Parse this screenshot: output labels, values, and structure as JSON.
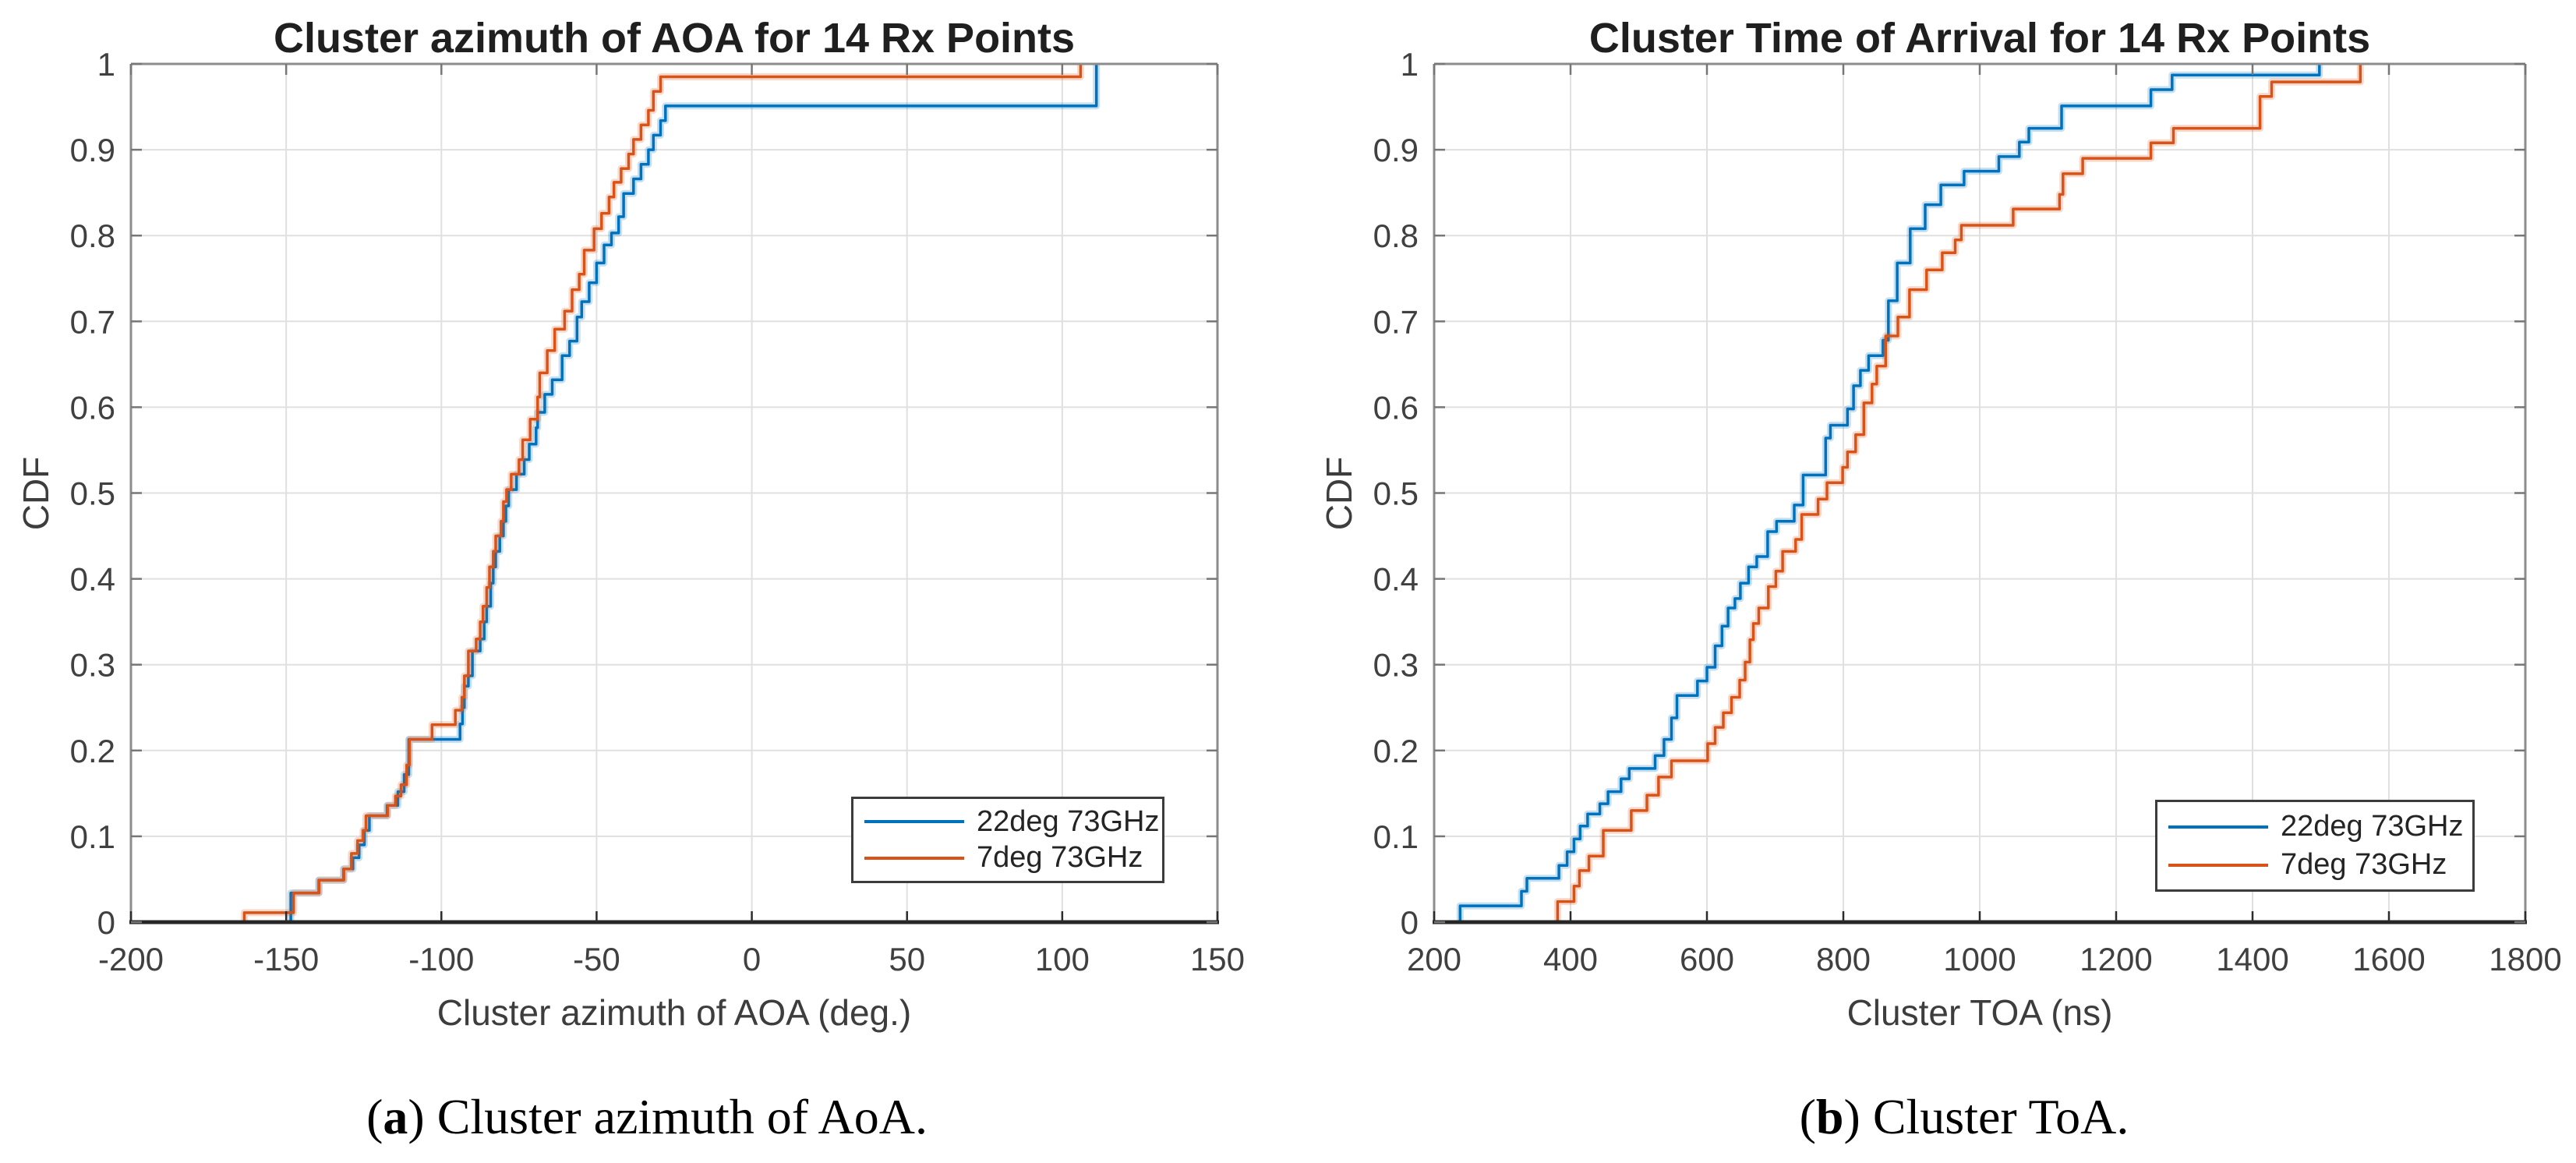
{
  "figure": {
    "background": "#ffffff",
    "accent_colors": {
      "series_blue": "#0072BD",
      "series_orange": "#D95319"
    },
    "captions": [
      {
        "open": "(",
        "letter": "a",
        "rest": ") Cluster azimuth of AoA."
      },
      {
        "open": "(",
        "letter": "b",
        "rest": ") Cluster ToA."
      }
    ]
  },
  "chart_data": [
    {
      "type": "line",
      "subtype": "empirical-cdf-stairs",
      "title": "Cluster azimuth of AOA for 14 Rx Points",
      "xlabel": "Cluster azimuth of AOA (deg.)",
      "ylabel": "CDF",
      "xlim": [
        -200,
        150
      ],
      "ylim": [
        0,
        1
      ],
      "xticks": [
        -200,
        -150,
        -100,
        -50,
        0,
        50,
        100,
        150
      ],
      "yticks": [
        0,
        0.1,
        0.2,
        0.3,
        0.4,
        0.5,
        0.6,
        0.7,
        0.8,
        0.9,
        1
      ],
      "grid": true,
      "legend_position": "southeast",
      "series": [
        {
          "name": "22deg 73GHz",
          "color": "#0072BD",
          "steps": [
            [
              -148.5,
              0.034
            ],
            [
              -139.5,
              0.049
            ],
            [
              -131.5,
              0.062
            ],
            [
              -128.5,
              0.075
            ],
            [
              -126.5,
              0.09
            ],
            [
              -124.8,
              0.107
            ],
            [
              -123.2,
              0.124
            ],
            [
              -117.5,
              0.136
            ],
            [
              -114,
              0.152
            ],
            [
              -112,
              0.172
            ],
            [
              -110.5,
              0.213
            ],
            [
              -94,
              0.231
            ],
            [
              -93.2,
              0.25
            ],
            [
              -92.6,
              0.275
            ],
            [
              -91.3,
              0.287
            ],
            [
              -90,
              0.316
            ],
            [
              -87.5,
              0.33
            ],
            [
              -86.2,
              0.35
            ],
            [
              -85.4,
              0.368
            ],
            [
              -84.1,
              0.395
            ],
            [
              -83.3,
              0.414
            ],
            [
              -82.5,
              0.432
            ],
            [
              -81.2,
              0.45
            ],
            [
              -80,
              0.467
            ],
            [
              -79.2,
              0.485
            ],
            [
              -78.3,
              0.504
            ],
            [
              -75.8,
              0.522
            ],
            [
              -73.3,
              0.539
            ],
            [
              -71.7,
              0.557
            ],
            [
              -69.5,
              0.576
            ],
            [
              -69,
              0.594
            ],
            [
              -66.7,
              0.615
            ],
            [
              -64.3,
              0.632
            ],
            [
              -61.1,
              0.66
            ],
            [
              -58.7,
              0.677
            ],
            [
              -56.3,
              0.705
            ],
            [
              -54.8,
              0.723
            ],
            [
              -52.4,
              0.745
            ],
            [
              -50,
              0.768
            ],
            [
              -47.6,
              0.789
            ],
            [
              -45.2,
              0.803
            ],
            [
              -42.9,
              0.822
            ],
            [
              -41.3,
              0.849
            ],
            [
              -38.1,
              0.866
            ],
            [
              -35.7,
              0.883
            ],
            [
              -33.3,
              0.9
            ],
            [
              -31.7,
              0.917
            ],
            [
              -29.4,
              0.934
            ],
            [
              -27.8,
              0.951
            ],
            [
              111,
              1.0
            ]
          ]
        },
        {
          "name": "7deg 73GHz",
          "color": "#D95319",
          "steps": [
            [
              -163.5,
              0.011
            ],
            [
              -147.6,
              0.034
            ],
            [
              -139.4,
              0.049
            ],
            [
              -131.4,
              0.062
            ],
            [
              -129,
              0.08
            ],
            [
              -127,
              0.095
            ],
            [
              -125.2,
              0.107
            ],
            [
              -124.3,
              0.124
            ],
            [
              -117.3,
              0.136
            ],
            [
              -114.8,
              0.147
            ],
            [
              -113,
              0.16
            ],
            [
              -111.2,
              0.183
            ],
            [
              -110.3,
              0.213
            ],
            [
              -103,
              0.23
            ],
            [
              -95.5,
              0.247
            ],
            [
              -93.4,
              0.262
            ],
            [
              -92.6,
              0.287
            ],
            [
              -91.3,
              0.316
            ],
            [
              -88.8,
              0.33
            ],
            [
              -87.5,
              0.35
            ],
            [
              -86.6,
              0.368
            ],
            [
              -85.4,
              0.39
            ],
            [
              -84.5,
              0.414
            ],
            [
              -83.3,
              0.432
            ],
            [
              -82.5,
              0.45
            ],
            [
              -80.8,
              0.467
            ],
            [
              -80,
              0.49
            ],
            [
              -79,
              0.504
            ],
            [
              -77.5,
              0.522
            ],
            [
              -75,
              0.539
            ],
            [
              -73.8,
              0.562
            ],
            [
              -71.4,
              0.586
            ],
            [
              -69,
              0.612
            ],
            [
              -68.3,
              0.64
            ],
            [
              -65.9,
              0.666
            ],
            [
              -63.5,
              0.691
            ],
            [
              -60.3,
              0.712
            ],
            [
              -57.9,
              0.737
            ],
            [
              -55.6,
              0.755
            ],
            [
              -54,
              0.783
            ],
            [
              -50.8,
              0.808
            ],
            [
              -48.4,
              0.826
            ],
            [
              -46,
              0.845
            ],
            [
              -44.4,
              0.862
            ],
            [
              -42.1,
              0.878
            ],
            [
              -39.7,
              0.895
            ],
            [
              -38.1,
              0.912
            ],
            [
              -35.7,
              0.929
            ],
            [
              -33.3,
              0.946
            ],
            [
              -31.7,
              0.968
            ],
            [
              -29.4,
              0.985
            ],
            [
              105.9,
              1.0
            ]
          ]
        }
      ]
    },
    {
      "type": "line",
      "subtype": "empirical-cdf-stairs",
      "title": "Cluster Time of Arrival for 14 Rx Points",
      "xlabel": "Cluster TOA (ns)",
      "ylabel": "CDF",
      "xlim": [
        200,
        1800
      ],
      "ylim": [
        0,
        1
      ],
      "xticks": [
        200,
        400,
        600,
        800,
        1000,
        1200,
        1400,
        1600,
        1800
      ],
      "yticks": [
        0,
        0.1,
        0.2,
        0.3,
        0.4,
        0.5,
        0.6,
        0.7,
        0.8,
        0.9,
        1
      ],
      "grid": true,
      "legend_position": "southeast",
      "series": [
        {
          "name": "22deg 73GHz",
          "color": "#0072BD",
          "steps": [
            [
              238,
              0.019
            ],
            [
              328,
              0.036
            ],
            [
              336,
              0.051
            ],
            [
              383,
              0.066
            ],
            [
              395,
              0.082
            ],
            [
              405,
              0.097
            ],
            [
              414,
              0.112
            ],
            [
              425,
              0.126
            ],
            [
              443,
              0.138
            ],
            [
              455,
              0.152
            ],
            [
              474,
              0.167
            ],
            [
              486,
              0.179
            ],
            [
              524,
              0.194
            ],
            [
              537,
              0.213
            ],
            [
              548,
              0.238
            ],
            [
              556,
              0.264
            ],
            [
              586,
              0.281
            ],
            [
              600,
              0.297
            ],
            [
              612,
              0.322
            ],
            [
              622,
              0.345
            ],
            [
              631,
              0.366
            ],
            [
              641,
              0.377
            ],
            [
              649,
              0.395
            ],
            [
              661,
              0.414
            ],
            [
              673,
              0.426
            ],
            [
              689,
              0.455
            ],
            [
              702,
              0.467
            ],
            [
              728,
              0.486
            ],
            [
              741,
              0.521
            ],
            [
              774,
              0.564
            ],
            [
              781,
              0.579
            ],
            [
              806,
              0.598
            ],
            [
              815,
              0.625
            ],
            [
              825,
              0.643
            ],
            [
              837,
              0.66
            ],
            [
              858,
              0.678
            ],
            [
              866,
              0.724
            ],
            [
              879,
              0.768
            ],
            [
              898,
              0.808
            ],
            [
              920,
              0.836
            ],
            [
              943,
              0.859
            ],
            [
              977,
              0.875
            ],
            [
              1028,
              0.892
            ],
            [
              1058,
              0.909
            ],
            [
              1072,
              0.925
            ],
            [
              1120,
              0.951
            ],
            [
              1251,
              0.97
            ],
            [
              1282,
              0.987
            ],
            [
              1498,
              1.0
            ]
          ]
        },
        {
          "name": "7deg 73GHz",
          "color": "#D95319",
          "steps": [
            [
              381,
              0.024
            ],
            [
              405,
              0.042
            ],
            [
              413,
              0.06
            ],
            [
              427,
              0.077
            ],
            [
              448,
              0.107
            ],
            [
              489,
              0.13
            ],
            [
              512,
              0.148
            ],
            [
              529,
              0.169
            ],
            [
              548,
              0.188
            ],
            [
              601,
              0.208
            ],
            [
              612,
              0.227
            ],
            [
              624,
              0.244
            ],
            [
              636,
              0.262
            ],
            [
              648,
              0.282
            ],
            [
              656,
              0.303
            ],
            [
              663,
              0.329
            ],
            [
              668,
              0.348
            ],
            [
              676,
              0.366
            ],
            [
              690,
              0.391
            ],
            [
              701,
              0.409
            ],
            [
              711,
              0.432
            ],
            [
              730,
              0.446
            ],
            [
              739,
              0.475
            ],
            [
              763,
              0.493
            ],
            [
              776,
              0.512
            ],
            [
              799,
              0.53
            ],
            [
              806,
              0.548
            ],
            [
              818,
              0.568
            ],
            [
              830,
              0.605
            ],
            [
              842,
              0.627
            ],
            [
              849,
              0.648
            ],
            [
              862,
              0.683
            ],
            [
              880,
              0.705
            ],
            [
              897,
              0.737
            ],
            [
              922,
              0.76
            ],
            [
              945,
              0.78
            ],
            [
              964,
              0.795
            ],
            [
              973,
              0.812
            ],
            [
              1049,
              0.831
            ],
            [
              1117,
              0.848
            ],
            [
              1122,
              0.872
            ],
            [
              1151,
              0.89
            ],
            [
              1251,
              0.908
            ],
            [
              1284,
              0.925
            ],
            [
              1411,
              0.962
            ],
            [
              1428,
              0.979
            ],
            [
              1558,
              1.0
            ]
          ]
        }
      ]
    }
  ]
}
